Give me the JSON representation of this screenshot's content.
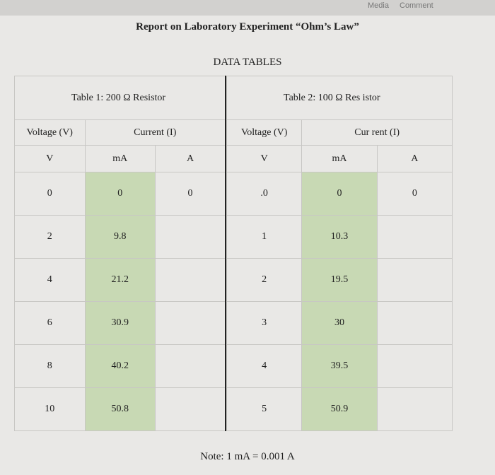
{
  "toolbar": {
    "items": [
      "Media",
      "Comment"
    ]
  },
  "header": {
    "title": "Report on Laboratory Experiment “Ohm’s Law”",
    "subtitle": "DATA TABLES"
  },
  "tables": [
    {
      "caption": "Table 1: 200 Ω Resistor",
      "headers": [
        "Voltage (V)",
        "Current (I)"
      ],
      "units": [
        "V",
        "mA",
        "A"
      ],
      "rows": [
        [
          0,
          0,
          0
        ],
        [
          2,
          9.8
        ],
        [
          4,
          21.2
        ],
        [
          6,
          30.9
        ],
        [
          8,
          40.2
        ],
        [
          10,
          50.8
        ]
      ]
    },
    {
      "caption": "Table 2: 100 Ω Res istor",
      "headers": [
        "Voltage (V)",
        "Cur rent (I)"
      ],
      "units": [
        "V",
        "mA",
        "A"
      ],
      "rows": [
        [
          ".0",
          0,
          0
        ],
        [
          1,
          10.3
        ],
        [
          2,
          19.5
        ],
        [
          3,
          30
        ],
        [
          4,
          39.5
        ],
        [
          5,
          50.9
        ]
      ]
    }
  ],
  "note": "Note: 1 mA = 0.001 A"
}
